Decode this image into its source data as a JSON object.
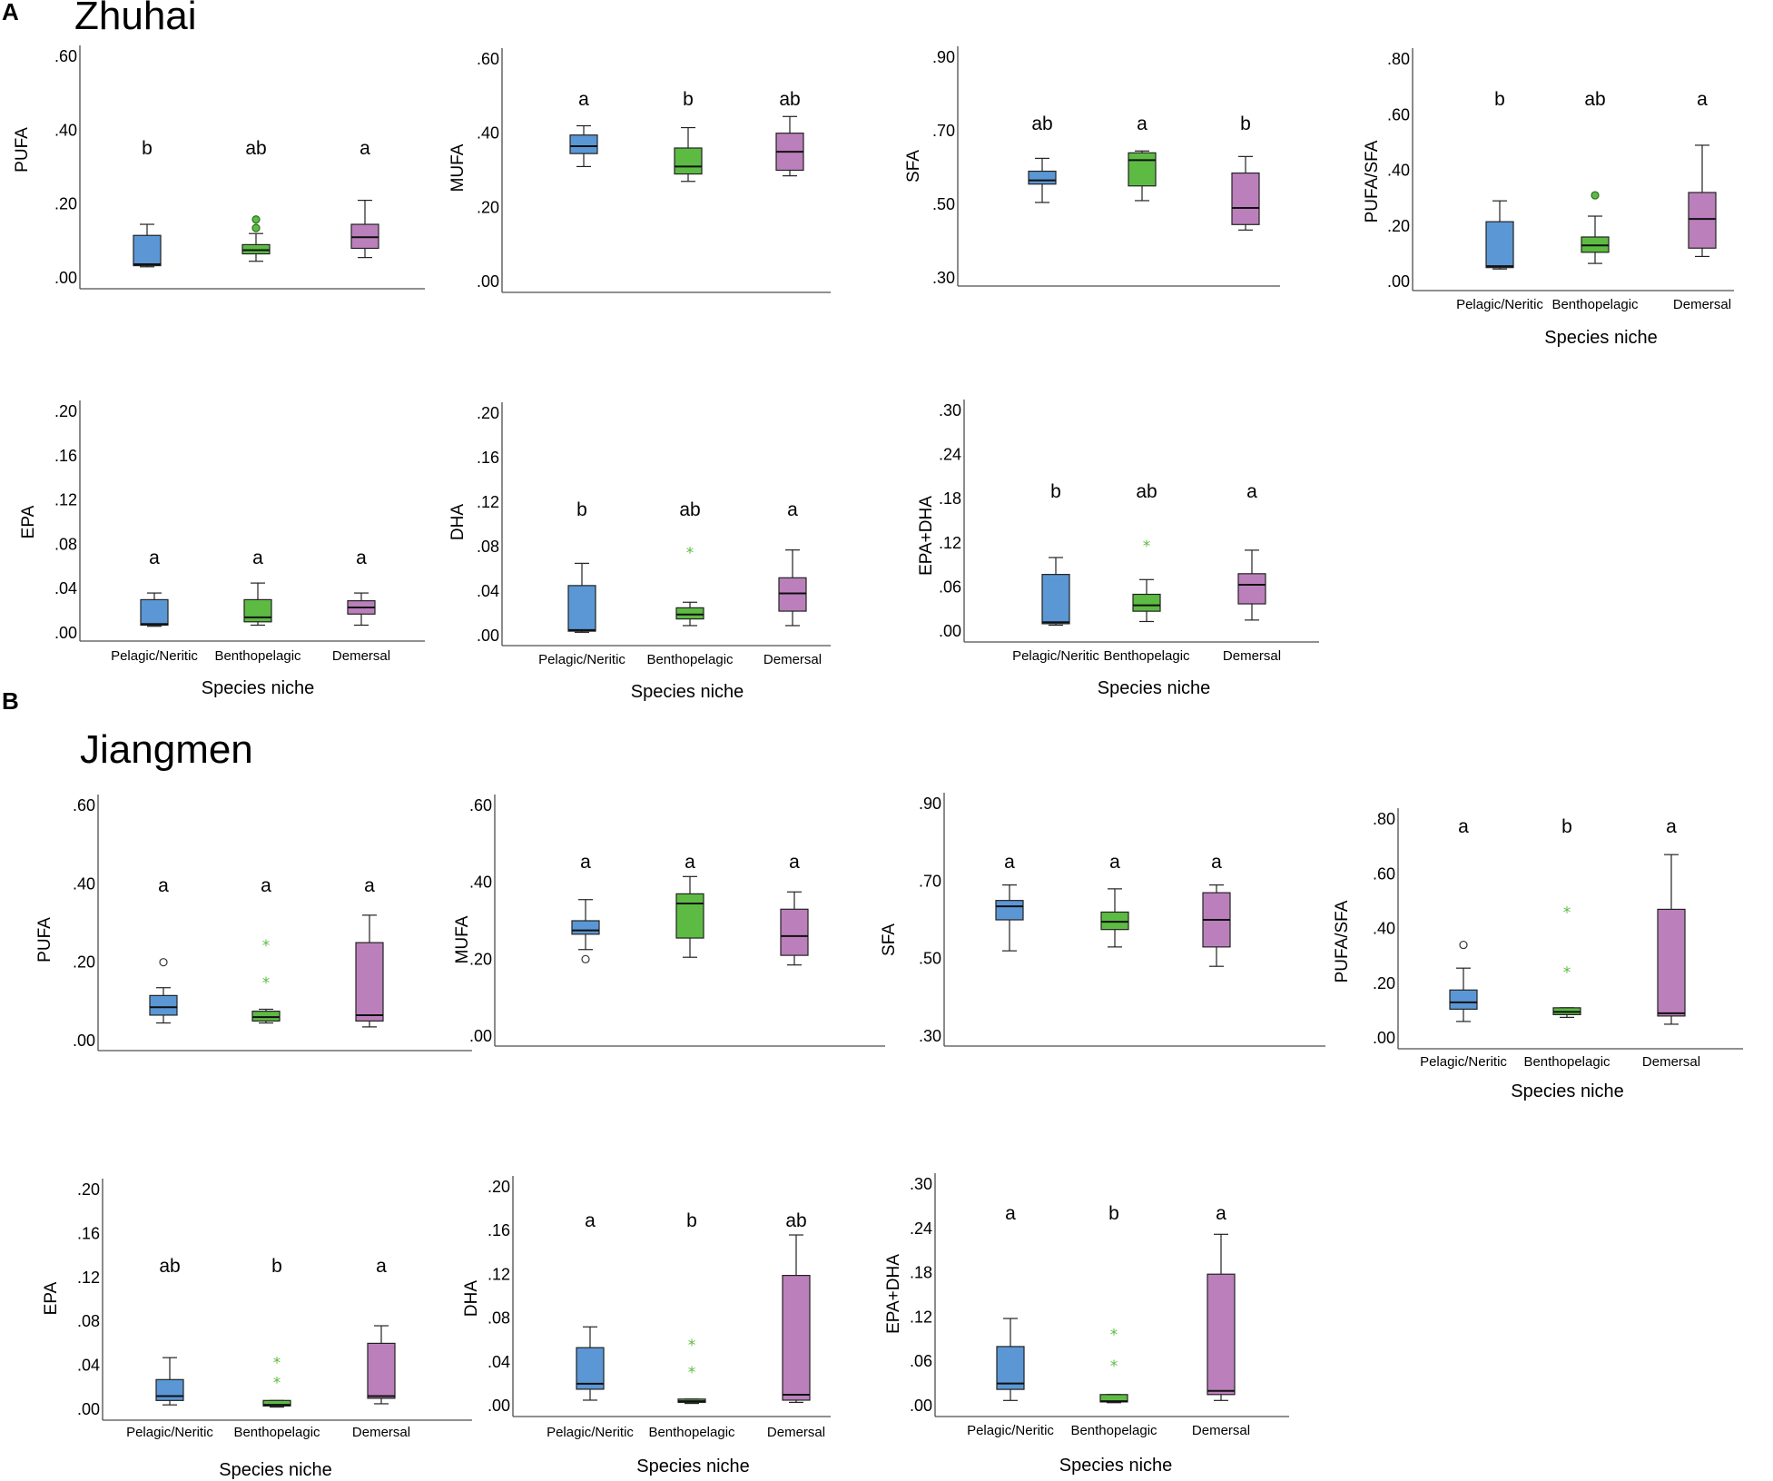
{
  "colors": {
    "pelagic": "#5b97d5",
    "benthopelagic": "#5dbb43",
    "demersal": "#bb80bb",
    "outlier_star": "#5dbb43"
  },
  "panels": [
    {
      "letter": "A",
      "site": "Zhuhai"
    },
    {
      "letter": "B",
      "site": "Jiangmen"
    }
  ],
  "categories": [
    "Pelagic/Neritic",
    "Benthopelagic",
    "Demersal"
  ],
  "xlabel": "Species niche",
  "chart_data": [
    {
      "type": "box",
      "site": "Zhuhai",
      "ylabel": "PUFA",
      "ylim": [
        0,
        0.6
      ],
      "ticks": [
        ".00",
        ".20",
        ".40",
        ".60"
      ],
      "show_xlabels": false,
      "groups": [
        {
          "category": "Pelagic/Neritic",
          "min": 0.03,
          "q1": 0.033,
          "median": 0.037,
          "q3": 0.115,
          "max": 0.145,
          "sig": "b",
          "outliers": []
        },
        {
          "category": "Benthopelagic",
          "min": 0.045,
          "q1": 0.065,
          "median": 0.075,
          "q3": 0.09,
          "max": 0.12,
          "sig": "ab",
          "outliers": [
            {
              "v": 0.135,
              "kind": "circle"
            },
            {
              "v": 0.158,
              "kind": "circle"
            }
          ]
        },
        {
          "category": "Demersal",
          "min": 0.055,
          "q1": 0.08,
          "median": 0.11,
          "q3": 0.145,
          "max": 0.21,
          "sig": "a",
          "outliers": []
        }
      ]
    },
    {
      "type": "box",
      "site": "Zhuhai",
      "ylabel": "MUFA",
      "ylim": [
        0,
        0.6
      ],
      "ticks": [
        ".00",
        ".20",
        ".40",
        ".60"
      ],
      "show_xlabels": false,
      "groups": [
        {
          "category": "Pelagic/Neritic",
          "min": 0.31,
          "q1": 0.345,
          "median": 0.365,
          "q3": 0.395,
          "max": 0.42,
          "sig": "a",
          "outliers": []
        },
        {
          "category": "Benthopelagic",
          "min": 0.27,
          "q1": 0.29,
          "median": 0.31,
          "q3": 0.36,
          "max": 0.415,
          "sig": "b",
          "outliers": []
        },
        {
          "category": "Demersal",
          "min": 0.285,
          "q1": 0.3,
          "median": 0.35,
          "q3": 0.4,
          "max": 0.445,
          "sig": "ab",
          "outliers": []
        }
      ]
    },
    {
      "type": "box",
      "site": "Zhuhai",
      "ylabel": "SFA",
      "ylim": [
        0.3,
        0.9
      ],
      "ticks": [
        ".30",
        ".50",
        ".70",
        ".90"
      ],
      "show_xlabels": false,
      "groups": [
        {
          "category": "Pelagic/Neritic",
          "min": 0.505,
          "q1": 0.555,
          "median": 0.565,
          "q3": 0.59,
          "max": 0.625,
          "sig": "ab",
          "outliers": []
        },
        {
          "category": "Benthopelagic",
          "min": 0.51,
          "q1": 0.55,
          "median": 0.62,
          "q3": 0.64,
          "max": 0.645,
          "sig": "a",
          "outliers": []
        },
        {
          "category": "Demersal",
          "min": 0.43,
          "q1": 0.445,
          "median": 0.49,
          "q3": 0.585,
          "max": 0.63,
          "sig": "b",
          "outliers": []
        }
      ]
    },
    {
      "type": "box",
      "site": "Zhuhai",
      "ylabel": "PUFA/SFA",
      "ylim": [
        0,
        0.8
      ],
      "ticks": [
        ".00",
        ".20",
        ".40",
        ".60",
        ".80"
      ],
      "show_xlabels": true,
      "groups": [
        {
          "category": "Pelagic/Neritic",
          "min": 0.045,
          "q1": 0.05,
          "median": 0.055,
          "q3": 0.215,
          "max": 0.29,
          "sig": "b",
          "outliers": []
        },
        {
          "category": "Benthopelagic",
          "min": 0.065,
          "q1": 0.105,
          "median": 0.13,
          "q3": 0.16,
          "max": 0.235,
          "sig": "ab",
          "outliers": [
            {
              "v": 0.31,
              "kind": "circle"
            }
          ]
        },
        {
          "category": "Demersal",
          "min": 0.09,
          "q1": 0.12,
          "median": 0.225,
          "q3": 0.32,
          "max": 0.49,
          "sig": "a",
          "outliers": []
        }
      ]
    },
    {
      "type": "box",
      "site": "Zhuhai",
      "ylabel": "EPA",
      "ylim": [
        0,
        0.2
      ],
      "ticks": [
        ".00",
        ".04",
        ".08",
        ".12",
        ".16",
        ".20"
      ],
      "show_xlabels": true,
      "groups": [
        {
          "category": "Pelagic/Neritic",
          "min": 0.006,
          "q1": 0.007,
          "median": 0.008,
          "q3": 0.03,
          "max": 0.036,
          "sig": "a",
          "outliers": []
        },
        {
          "category": "Benthopelagic",
          "min": 0.007,
          "q1": 0.01,
          "median": 0.014,
          "q3": 0.03,
          "max": 0.045,
          "sig": "a",
          "outliers": []
        },
        {
          "category": "Demersal",
          "min": 0.007,
          "q1": 0.017,
          "median": 0.023,
          "q3": 0.029,
          "max": 0.036,
          "sig": "a",
          "outliers": []
        }
      ]
    },
    {
      "type": "box",
      "site": "Zhuhai",
      "ylabel": "DHA",
      "ylim": [
        0,
        0.2
      ],
      "ticks": [
        ".00",
        ".04",
        ".08",
        ".12",
        ".16",
        ".20"
      ],
      "show_xlabels": true,
      "groups": [
        {
          "category": "Pelagic/Neritic",
          "min": 0.003,
          "q1": 0.004,
          "median": 0.005,
          "q3": 0.045,
          "max": 0.065,
          "sig": "b",
          "outliers": []
        },
        {
          "category": "Benthopelagic",
          "min": 0.009,
          "q1": 0.015,
          "median": 0.019,
          "q3": 0.025,
          "max": 0.03,
          "sig": "ab",
          "outliers": [
            {
              "v": 0.077,
              "kind": "star"
            }
          ]
        },
        {
          "category": "Demersal",
          "min": 0.009,
          "q1": 0.022,
          "median": 0.038,
          "q3": 0.052,
          "max": 0.077,
          "sig": "a",
          "outliers": []
        }
      ]
    },
    {
      "type": "box",
      "site": "Zhuhai",
      "ylabel": "EPA+DHA",
      "ylim": [
        0,
        0.3
      ],
      "ticks": [
        ".00",
        ".06",
        ".12",
        ".18",
        ".24",
        ".30"
      ],
      "show_xlabels": true,
      "groups": [
        {
          "category": "Pelagic/Neritic",
          "min": 0.008,
          "q1": 0.01,
          "median": 0.012,
          "q3": 0.077,
          "max": 0.1,
          "sig": "b",
          "outliers": []
        },
        {
          "category": "Benthopelagic",
          "min": 0.013,
          "q1": 0.027,
          "median": 0.035,
          "q3": 0.05,
          "max": 0.07,
          "sig": "ab",
          "outliers": [
            {
              "v": 0.12,
              "kind": "star"
            }
          ]
        },
        {
          "category": "Demersal",
          "min": 0.015,
          "q1": 0.037,
          "median": 0.063,
          "q3": 0.078,
          "max": 0.11,
          "sig": "a",
          "outliers": []
        }
      ]
    },
    {
      "type": "box",
      "site": "Jiangmen",
      "ylabel": "PUFA",
      "ylim": [
        0,
        0.6
      ],
      "ticks": [
        ".00",
        ".20",
        ".40",
        ".60"
      ],
      "show_xlabels": false,
      "groups": [
        {
          "category": "Pelagic/Neritic",
          "min": 0.045,
          "q1": 0.065,
          "median": 0.085,
          "q3": 0.115,
          "max": 0.135,
          "sig": "a",
          "outliers": [
            {
              "v": 0.2,
              "kind": "circle"
            }
          ]
        },
        {
          "category": "Benthopelagic",
          "min": 0.045,
          "q1": 0.05,
          "median": 0.06,
          "q3": 0.075,
          "max": 0.08,
          "sig": "a",
          "outliers": [
            {
              "v": 0.155,
              "kind": "star"
            },
            {
              "v": 0.25,
              "kind": "star"
            }
          ]
        },
        {
          "category": "Demersal",
          "min": 0.035,
          "q1": 0.05,
          "median": 0.065,
          "q3": 0.25,
          "max": 0.32,
          "sig": "a",
          "outliers": []
        }
      ]
    },
    {
      "type": "box",
      "site": "Jiangmen",
      "ylabel": "MUFA",
      "ylim": [
        0,
        0.6
      ],
      "ticks": [
        ".00",
        ".20",
        ".40",
        ".60"
      ],
      "show_xlabels": false,
      "groups": [
        {
          "category": "Pelagic/Neritic",
          "min": 0.225,
          "q1": 0.265,
          "median": 0.275,
          "q3": 0.3,
          "max": 0.355,
          "sig": "a",
          "outliers": [
            {
              "v": 0.2,
              "kind": "circle"
            }
          ]
        },
        {
          "category": "Benthopelagic",
          "min": 0.205,
          "q1": 0.255,
          "median": 0.345,
          "q3": 0.37,
          "max": 0.415,
          "sig": "a",
          "outliers": []
        },
        {
          "category": "Demersal",
          "min": 0.185,
          "q1": 0.21,
          "median": 0.26,
          "q3": 0.33,
          "max": 0.375,
          "sig": "a",
          "outliers": []
        }
      ]
    },
    {
      "type": "box",
      "site": "Jiangmen",
      "ylabel": "SFA",
      "ylim": [
        0.3,
        0.9
      ],
      "ticks": [
        ".30",
        ".50",
        ".70",
        ".90"
      ],
      "show_xlabels": false,
      "groups": [
        {
          "category": "Pelagic/Neritic",
          "min": 0.52,
          "q1": 0.6,
          "median": 0.635,
          "q3": 0.65,
          "max": 0.69,
          "sig": "a",
          "outliers": []
        },
        {
          "category": "Benthopelagic",
          "min": 0.53,
          "q1": 0.575,
          "median": 0.595,
          "q3": 0.62,
          "max": 0.68,
          "sig": "a",
          "outliers": []
        },
        {
          "category": "Demersal",
          "min": 0.48,
          "q1": 0.53,
          "median": 0.6,
          "q3": 0.67,
          "max": 0.69,
          "sig": "a",
          "outliers": []
        }
      ]
    },
    {
      "type": "box",
      "site": "Jiangmen",
      "ylabel": "PUFA/SFA",
      "ylim": [
        0,
        0.8
      ],
      "ticks": [
        ".00",
        ".20",
        ".40",
        ".60",
        ".80"
      ],
      "show_xlabels": true,
      "groups": [
        {
          "category": "Pelagic/Neritic",
          "min": 0.06,
          "q1": 0.105,
          "median": 0.13,
          "q3": 0.175,
          "max": 0.255,
          "sig": "a",
          "outliers": [
            {
              "v": 0.34,
              "kind": "circle"
            }
          ]
        },
        {
          "category": "Benthopelagic",
          "min": 0.075,
          "q1": 0.085,
          "median": 0.095,
          "q3": 0.11,
          "max": 0.11,
          "sig": "b",
          "outliers": [
            {
              "v": 0.25,
              "kind": "star"
            },
            {
              "v": 0.47,
              "kind": "star"
            }
          ]
        },
        {
          "category": "Demersal",
          "min": 0.05,
          "q1": 0.08,
          "median": 0.09,
          "q3": 0.47,
          "max": 0.67,
          "sig": "a",
          "outliers": []
        }
      ]
    },
    {
      "type": "box",
      "site": "Jiangmen",
      "ylabel": "EPA",
      "ylim": [
        0,
        0.2
      ],
      "ticks": [
        ".00",
        ".04",
        ".08",
        ".12",
        ".16",
        ".20"
      ],
      "show_xlabels": true,
      "groups": [
        {
          "category": "Pelagic/Neritic",
          "min": 0.004,
          "q1": 0.008,
          "median": 0.012,
          "q3": 0.027,
          "max": 0.047,
          "sig": "ab",
          "outliers": []
        },
        {
          "category": "Benthopelagic",
          "min": 0.002,
          "q1": 0.003,
          "median": 0.004,
          "q3": 0.008,
          "max": 0.008,
          "sig": "b",
          "outliers": [
            {
              "v": 0.027,
              "kind": "star"
            },
            {
              "v": 0.045,
              "kind": "star"
            }
          ]
        },
        {
          "category": "Demersal",
          "min": 0.005,
          "q1": 0.01,
          "median": 0.012,
          "q3": 0.06,
          "max": 0.076,
          "sig": "a",
          "outliers": []
        }
      ]
    },
    {
      "type": "box",
      "site": "Jiangmen",
      "ylabel": "DHA",
      "ylim": [
        0,
        0.2
      ],
      "ticks": [
        ".00",
        ".04",
        ".08",
        ".12",
        ".16",
        ".20"
      ],
      "show_xlabels": true,
      "groups": [
        {
          "category": "Pelagic/Neritic",
          "min": 0.005,
          "q1": 0.015,
          "median": 0.02,
          "q3": 0.053,
          "max": 0.072,
          "sig": "a",
          "outliers": []
        },
        {
          "category": "Benthopelagic",
          "min": 0.002,
          "q1": 0.003,
          "median": 0.004,
          "q3": 0.006,
          "max": 0.006,
          "sig": "b",
          "outliers": [
            {
              "v": 0.033,
              "kind": "star"
            },
            {
              "v": 0.058,
              "kind": "star"
            }
          ]
        },
        {
          "category": "Demersal",
          "min": 0.003,
          "q1": 0.005,
          "median": 0.01,
          "q3": 0.119,
          "max": 0.156,
          "sig": "ab",
          "outliers": []
        }
      ]
    },
    {
      "type": "box",
      "site": "Jiangmen",
      "ylabel": "EPA+DHA",
      "ylim": [
        0,
        0.3
      ],
      "ticks": [
        ".00",
        ".06",
        ".12",
        ".18",
        ".24",
        ".30"
      ],
      "show_xlabels": true,
      "groups": [
        {
          "category": "Pelagic/Neritic",
          "min": 0.007,
          "q1": 0.022,
          "median": 0.03,
          "q3": 0.08,
          "max": 0.118,
          "sig": "a",
          "outliers": []
        },
        {
          "category": "Benthopelagic",
          "min": 0.004,
          "q1": 0.005,
          "median": 0.006,
          "q3": 0.015,
          "max": 0.015,
          "sig": "b",
          "outliers": [
            {
              "v": 0.058,
              "kind": "star"
            },
            {
              "v": 0.1,
              "kind": "star"
            }
          ]
        },
        {
          "category": "Demersal",
          "min": 0.007,
          "q1": 0.015,
          "median": 0.02,
          "q3": 0.178,
          "max": 0.232,
          "sig": "a",
          "outliers": []
        }
      ]
    }
  ]
}
